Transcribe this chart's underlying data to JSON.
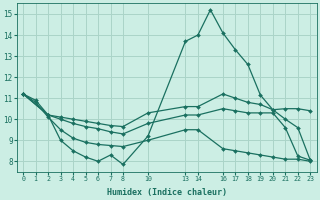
{
  "xlabel": "Humidex (Indice chaleur)",
  "bg_color": "#cceee4",
  "grid_color": "#aad4c8",
  "line_color": "#1a7060",
  "xlim": [
    -0.5,
    23.5
  ],
  "ylim": [
    7.5,
    15.5
  ],
  "xtick_labels": [
    "0",
    "1",
    "2",
    "3",
    "4",
    "5",
    "6",
    "7",
    "8",
    "10",
    "1314",
    "16171819202122",
    "23"
  ],
  "yticks": [
    8,
    9,
    10,
    11,
    12,
    13,
    14,
    15
  ],
  "series": [
    {
      "x": [
        0,
        1,
        2,
        3,
        4,
        5,
        6,
        7,
        8,
        10,
        13,
        14,
        15,
        16,
        17,
        18,
        19,
        20,
        21,
        22,
        23
      ],
      "y": [
        11.2,
        10.9,
        10.2,
        9.0,
        8.5,
        8.2,
        8.0,
        8.3,
        7.85,
        9.2,
        13.7,
        14.0,
        15.2,
        14.1,
        13.3,
        12.6,
        11.15,
        10.45,
        10.0,
        9.6,
        8.05
      ]
    },
    {
      "x": [
        0,
        1,
        2,
        3,
        4,
        5,
        6,
        7,
        8,
        10,
        13,
        14,
        16,
        17,
        18,
        19,
        20,
        21,
        22,
        23
      ],
      "y": [
        11.2,
        10.8,
        10.1,
        9.5,
        9.1,
        8.9,
        8.8,
        8.75,
        8.7,
        9.0,
        9.5,
        9.5,
        8.6,
        8.5,
        8.4,
        8.3,
        8.2,
        8.1,
        8.1,
        8.0
      ]
    },
    {
      "x": [
        0,
        2,
        3,
        4,
        5,
        6,
        7,
        8,
        10,
        13,
        14,
        16,
        17,
        18,
        19,
        20,
        21,
        22,
        23
      ],
      "y": [
        11.2,
        10.2,
        10.1,
        10.0,
        9.9,
        9.8,
        9.7,
        9.65,
        10.3,
        10.6,
        10.6,
        11.2,
        11.0,
        10.8,
        10.7,
        10.45,
        10.5,
        10.5,
        10.4
      ]
    },
    {
      "x": [
        0,
        2,
        3,
        4,
        5,
        6,
        7,
        8,
        10,
        13,
        14,
        16,
        17,
        18,
        19,
        20,
        21,
        22,
        23
      ],
      "y": [
        11.2,
        10.2,
        10.0,
        9.8,
        9.65,
        9.55,
        9.4,
        9.3,
        9.8,
        10.2,
        10.2,
        10.5,
        10.4,
        10.3,
        10.3,
        10.3,
        9.6,
        8.25,
        8.05
      ]
    }
  ]
}
